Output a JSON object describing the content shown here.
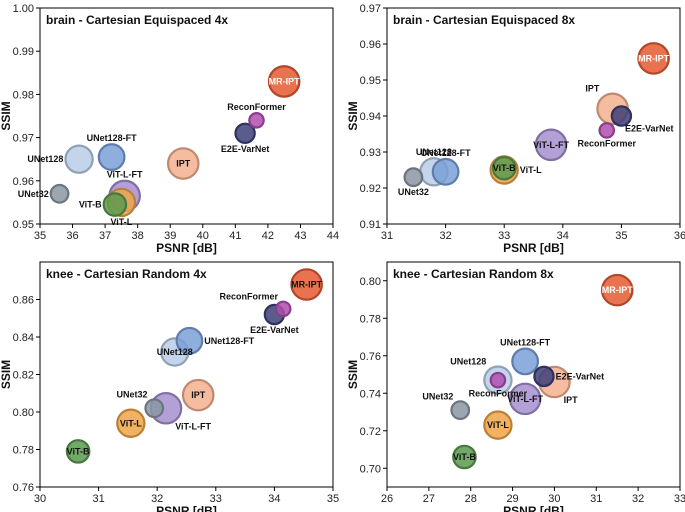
{
  "chart_data": [
    {
      "type": "scatter",
      "title": "brain - Cartesian Equispaced 4x",
      "xlabel": "PSNR [dB]",
      "ylabel": "SSIM",
      "xlim": [
        35,
        44
      ],
      "ylim": [
        0.95,
        1.0
      ],
      "xticks": [
        "35",
        "36",
        "37",
        "38",
        "39",
        "40",
        "41",
        "42",
        "43",
        "44"
      ],
      "yticks": [
        "0.95",
        "0.96",
        "0.97",
        "0.98",
        "0.99",
        "1.00"
      ],
      "points": [
        {
          "label": "UNet32",
          "x": 35.6,
          "y": 0.957,
          "size": 0.3,
          "color": "#8a96a3",
          "lpos": "left"
        },
        {
          "label": "UNet128",
          "x": 36.2,
          "y": 0.965,
          "size": 0.6,
          "color": "#b9cde8",
          "lpos": "left"
        },
        {
          "label": "UNet128-FT",
          "x": 37.2,
          "y": 0.9655,
          "size": 0.55,
          "color": "#7aa0d8",
          "lpos": "above"
        },
        {
          "label": "ViT-B",
          "x": 37.3,
          "y": 0.9545,
          "size": 0.45,
          "color": "#5a9a4e",
          "lpos": "left"
        },
        {
          "label": "ViT-L",
          "x": 37.5,
          "y": 0.955,
          "size": 0.6,
          "color": "#f0a448",
          "lpos": "below"
        },
        {
          "label": "ViT-L-FT",
          "x": 37.6,
          "y": 0.9565,
          "size": 0.7,
          "color": "#a48fcf",
          "lpos": "above"
        },
        {
          "label": "IPT",
          "x": 39.4,
          "y": 0.964,
          "size": 0.7,
          "color": "#f5b08e",
          "lpos": "center"
        },
        {
          "label": "E2E-VarNet",
          "x": 41.3,
          "y": 0.971,
          "size": 0.35,
          "color": "#3d3f78",
          "lpos": "below"
        },
        {
          "label": "ReconFormer",
          "x": 41.65,
          "y": 0.974,
          "size": 0.2,
          "color": "#b04fb0",
          "lpos": "above"
        },
        {
          "label": "MR-IPT",
          "x": 42.5,
          "y": 0.983,
          "size": 0.7,
          "color": "#e55a32",
          "lpos": "center-white"
        }
      ]
    },
    {
      "type": "scatter",
      "title": "brain - Cartesian Equispaced 8x",
      "xlabel": "PSNR [dB]",
      "ylabel": "SSIM",
      "xlim": [
        31,
        36
      ],
      "ylim": [
        0.91,
        0.97
      ],
      "xticks": [
        "31",
        "32",
        "33",
        "34",
        "35",
        "36"
      ],
      "yticks": [
        "0.91",
        "0.92",
        "0.93",
        "0.94",
        "0.95",
        "0.96",
        "0.97"
      ],
      "points": [
        {
          "label": "UNet32",
          "x": 31.45,
          "y": 0.923,
          "size": 0.3,
          "color": "#8a96a3",
          "lpos": "below"
        },
        {
          "label": "UNet128",
          "x": 31.8,
          "y": 0.9245,
          "size": 0.6,
          "color": "#b9cde8",
          "lpos": "above"
        },
        {
          "label": "UNet128-FT",
          "x": 32.0,
          "y": 0.9245,
          "size": 0.55,
          "color": "#7aa0d8",
          "lpos": "above"
        },
        {
          "label": "ViT-L",
          "x": 33.0,
          "y": 0.925,
          "size": 0.6,
          "color": "#f0a448",
          "lpos": "right"
        },
        {
          "label": "ViT-B",
          "x": 33.0,
          "y": 0.9255,
          "size": 0.45,
          "color": "#5a9a4e",
          "lpos": "center"
        },
        {
          "label": "ViT-L-FT",
          "x": 33.8,
          "y": 0.932,
          "size": 0.7,
          "color": "#a48fcf",
          "lpos": "center"
        },
        {
          "label": "IPT",
          "x": 34.85,
          "y": 0.942,
          "size": 0.7,
          "color": "#f5b08e",
          "lpos": "aboveleft"
        },
        {
          "label": "ReconFormer",
          "x": 34.75,
          "y": 0.936,
          "size": 0.2,
          "color": "#b04fb0",
          "lpos": "below"
        },
        {
          "label": "E2E-VarNet",
          "x": 35.0,
          "y": 0.94,
          "size": 0.35,
          "color": "#3d3f78",
          "lpos": "belowright"
        },
        {
          "label": "MR-IPT",
          "x": 35.55,
          "y": 0.956,
          "size": 0.7,
          "color": "#e55a32",
          "lpos": "center-white"
        }
      ]
    },
    {
      "type": "scatter",
      "title": "knee - Cartesian Random 4x",
      "xlabel": "PSNR [dB]",
      "ylabel": "SSIM",
      "xlim": [
        30,
        35
      ],
      "ylim": [
        0.76,
        0.88
      ],
      "xticks": [
        "30",
        "31",
        "32",
        "33",
        "34",
        "35"
      ],
      "yticks": [
        "0.76",
        "0.78",
        "0.80",
        "0.82",
        "0.84",
        "0.86"
      ],
      "points": [
        {
          "label": "ViT-B",
          "x": 30.65,
          "y": 0.779,
          "size": 0.45,
          "color": "#5a9a4e",
          "lpos": "center"
        },
        {
          "label": "ViT-L",
          "x": 31.55,
          "y": 0.794,
          "size": 0.6,
          "color": "#f0a448",
          "lpos": "center"
        },
        {
          "label": "UNet32",
          "x": 31.95,
          "y": 0.802,
          "size": 0.3,
          "color": "#8a96a3",
          "lpos": "aboveleft"
        },
        {
          "label": "ViT-L-FT",
          "x": 32.15,
          "y": 0.802,
          "size": 0.7,
          "color": "#a48fcf",
          "lpos": "belowright"
        },
        {
          "label": "UNet128",
          "x": 32.3,
          "y": 0.832,
          "size": 0.6,
          "color": "#b9cde8",
          "lpos": "center"
        },
        {
          "label": "UNet128-FT",
          "x": 32.55,
          "y": 0.838,
          "size": 0.55,
          "color": "#7aa0d8",
          "lpos": "right"
        },
        {
          "label": "IPT",
          "x": 32.7,
          "y": 0.809,
          "size": 0.7,
          "color": "#f5b08e",
          "lpos": "center"
        },
        {
          "label": "E2E-VarNet",
          "x": 34.0,
          "y": 0.852,
          "size": 0.35,
          "color": "#3d3f78",
          "lpos": "below"
        },
        {
          "label": "ReconFormer",
          "x": 34.15,
          "y": 0.855,
          "size": 0.2,
          "color": "#b04fb0",
          "lpos": "aboveleft"
        },
        {
          "label": "MR-IPT",
          "x": 34.55,
          "y": 0.868,
          "size": 0.7,
          "color": "#e55a32",
          "lpos": "center"
        }
      ]
    },
    {
      "type": "scatter",
      "title": "knee - Cartesian Random 8x",
      "xlabel": "PSNR [dB]",
      "ylabel": "SSIM",
      "xlim": [
        26,
        33
      ],
      "ylim": [
        0.69,
        0.81
      ],
      "xticks": [
        "26",
        "27",
        "28",
        "29",
        "30",
        "31",
        "32",
        "33"
      ],
      "yticks": [
        "0.70",
        "0.72",
        "0.74",
        "0.76",
        "0.78",
        "0.80"
      ],
      "points": [
        {
          "label": "ViT-B",
          "x": 27.85,
          "y": 0.706,
          "size": 0.45,
          "color": "#5a9a4e",
          "lpos": "center"
        },
        {
          "label": "UNet32",
          "x": 27.75,
          "y": 0.731,
          "size": 0.3,
          "color": "#8a96a3",
          "lpos": "aboveleft"
        },
        {
          "label": "ViT-L",
          "x": 28.65,
          "y": 0.723,
          "size": 0.6,
          "color": "#f0a448",
          "lpos": "center"
        },
        {
          "label": "UNet128",
          "x": 28.65,
          "y": 0.747,
          "size": 0.6,
          "color": "#b9cde8",
          "lpos": "aboveleft"
        },
        {
          "label": "ReconFormer",
          "x": 28.65,
          "y": 0.747,
          "size": 0.2,
          "color": "#b04fb0",
          "lpos": "below"
        },
        {
          "label": "ViT-L-FT",
          "x": 29.3,
          "y": 0.737,
          "size": 0.7,
          "color": "#a48fcf",
          "lpos": "center"
        },
        {
          "label": "UNet128-FT",
          "x": 29.3,
          "y": 0.757,
          "size": 0.55,
          "color": "#7aa0d8",
          "lpos": "above"
        },
        {
          "label": "IPT",
          "x": 30.0,
          "y": 0.746,
          "size": 0.7,
          "color": "#f5b08e",
          "lpos": "belowright"
        },
        {
          "label": "E2E-VarNet",
          "x": 29.75,
          "y": 0.749,
          "size": 0.35,
          "color": "#3d3f78",
          "lpos": "right"
        },
        {
          "label": "MR-IPT",
          "x": 31.5,
          "y": 0.795,
          "size": 0.7,
          "color": "#e55a32",
          "lpos": "center-white"
        }
      ]
    }
  ]
}
